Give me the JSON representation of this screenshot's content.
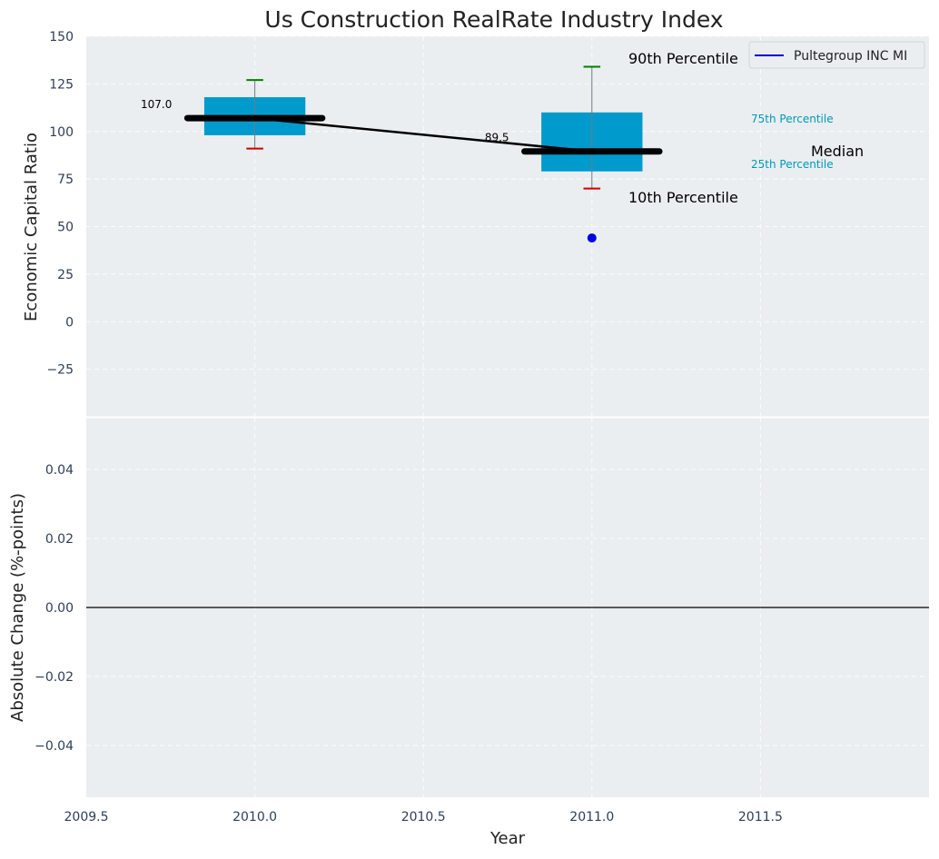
{
  "chart_data": [
    {
      "type": "box",
      "title": "Us Construction RealRate Industry Index",
      "ylabel": "Economic Capital Ratio",
      "xlim": [
        2009.5,
        2012.0
      ],
      "ylim": [
        -50,
        150
      ],
      "yticks": [
        150,
        125,
        100,
        75,
        50,
        25,
        0,
        -25
      ],
      "ytick_labels": [
        "150",
        "125",
        "100",
        "75",
        "50",
        "25",
        "0",
        "−25"
      ],
      "grid": true,
      "boxes": [
        {
          "x": 2010.0,
          "p10": 91,
          "p25": 98,
          "median": 107.0,
          "p75": 118,
          "p90": 127,
          "median_label": "107.0"
        },
        {
          "x": 2011.0,
          "p10": 70,
          "p25": 79,
          "median": 89.5,
          "p75": 110,
          "p90": 134,
          "median_label": "89.5"
        }
      ],
      "median_line": {
        "x": [
          2010.0,
          2011.0
        ],
        "y": [
          107.0,
          89.5
        ]
      },
      "company_points": [
        {
          "x": 2011.0,
          "y": 44
        }
      ],
      "legend": {
        "position": "top-right",
        "entries": [
          "Pultegroup INC MI"
        ]
      },
      "annotations": {
        "p90": "90th Percentile",
        "p75": "75th Percentile",
        "median": "Median",
        "p25": "25th Percentile",
        "p10": "10th Percentile"
      },
      "colors": {
        "box": "#009acd",
        "median": "#000000",
        "p90_cap": "#008000",
        "p10_cap": "#cc0000",
        "company": "#0000e0",
        "legend_line": "#0000cd",
        "pct_label": "#0099bb",
        "background": "#eaeef0"
      }
    },
    {
      "type": "line",
      "xlabel": "Year",
      "ylabel": "Absolute Change (%-points)",
      "xlim": [
        2009.5,
        2012.0
      ],
      "ylim": [
        -0.055,
        0.055
      ],
      "xticks": [
        2009.5,
        2010.0,
        2010.5,
        2011.0,
        2011.5
      ],
      "xtick_labels": [
        "2009.5",
        "2010.0",
        "2010.5",
        "2011.0",
        "2011.5"
      ],
      "yticks": [
        0.04,
        0.02,
        0.0,
        -0.02,
        -0.04
      ],
      "ytick_labels": [
        "0.04",
        "0.02",
        "0.00",
        "−0.02",
        "−0.04"
      ],
      "zero_line": 0,
      "grid": true
    }
  ]
}
